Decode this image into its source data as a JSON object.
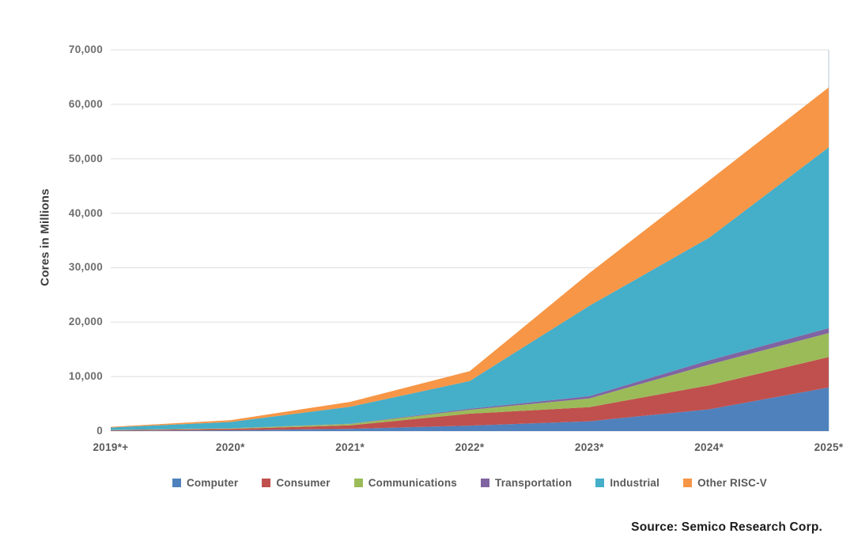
{
  "figure": {
    "source_note": "Source: Semico Research Corp."
  },
  "chart_data": {
    "type": "area",
    "stacked": true,
    "title": "",
    "xlabel": "",
    "ylabel": "Cores in Millions",
    "units": "millions of cores",
    "categories": [
      "2019*+",
      "2020*",
      "2021*",
      "2022*",
      "2023*",
      "2024*",
      "2025*"
    ],
    "y_axis": {
      "min": 0,
      "max": 70000,
      "step": 10000,
      "tick_labels": [
        "0",
        "10,000",
        "20,000",
        "30,000",
        "40,000",
        "50,000",
        "60,000",
        "70,000"
      ]
    },
    "grid": "horizontal",
    "gridline_color": "#e4e4e4",
    "plot_right_border_color": "#d9e4ec",
    "legend_position": "bottom",
    "series": [
      {
        "name": "Computer",
        "color": "#4F81BD",
        "values": [
          60,
          150,
          400,
          1000,
          1800,
          4000,
          8000
        ]
      },
      {
        "name": "Consumer",
        "color": "#C0504D",
        "values": [
          100,
          250,
          650,
          2200,
          2600,
          4400,
          5600
        ]
      },
      {
        "name": "Communications",
        "color": "#9BBB59",
        "values": [
          40,
          90,
          250,
          700,
          1600,
          3800,
          4400
        ]
      },
      {
        "name": "Transportation",
        "color": "#8064A2",
        "values": [
          10,
          25,
          60,
          200,
          400,
          800,
          900
        ]
      },
      {
        "name": "Industrial",
        "color": "#45AEC9",
        "values": [
          450,
          1150,
          3100,
          5100,
          16600,
          22500,
          33200
        ]
      },
      {
        "name": "Other RISC-V",
        "color": "#F79646",
        "values": [
          120,
          340,
          900,
          1800,
          6000,
          10500,
          11000
        ]
      }
    ],
    "stacked_totals": [
      780,
      2005,
      5360,
      11000,
      29000,
      46000,
      63100
    ]
  }
}
